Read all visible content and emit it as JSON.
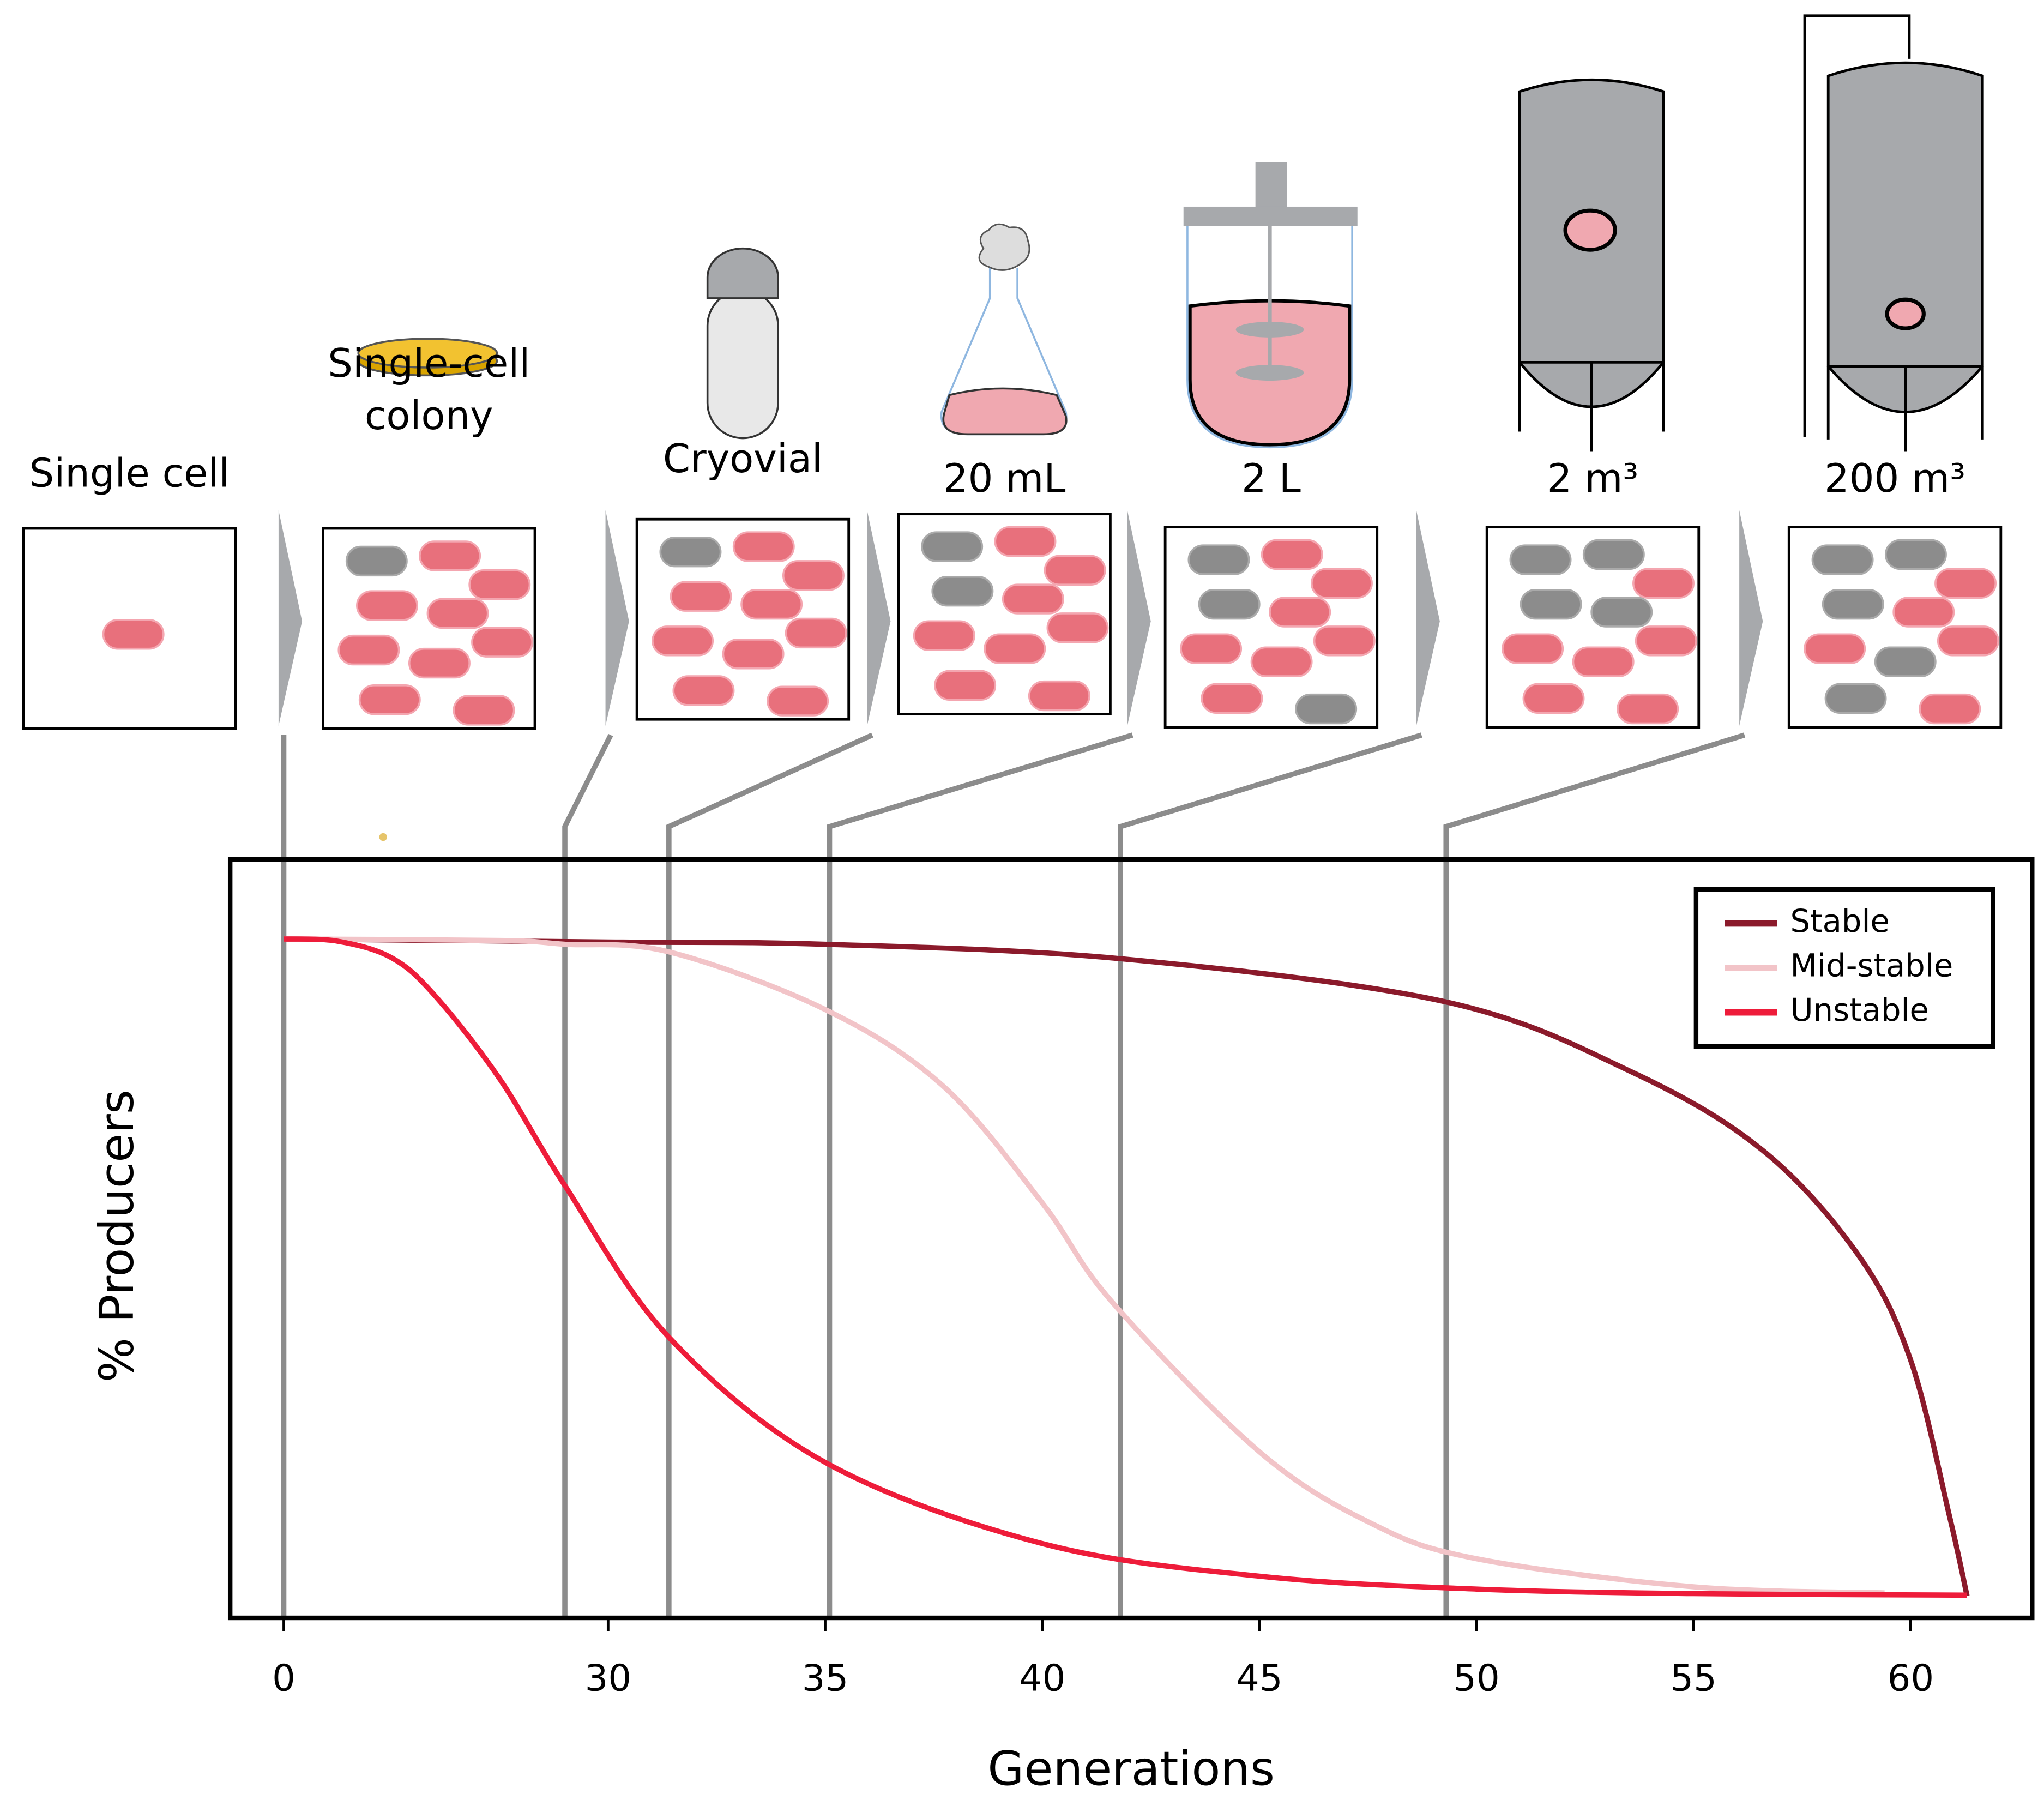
{
  "chart_data": {
    "type": "line",
    "xlabel": "Generations",
    "ylabel": "% Producers",
    "xlim": [
      0,
      62.8
    ],
    "xticks": [
      0,
      30,
      35,
      40,
      45,
      50,
      55,
      60
    ],
    "ylim": [
      0,
      100
    ],
    "legend": "top-right",
    "stages": [
      {
        "label": [
          "Single cell"
        ]
      },
      {
        "label": [
          "Single-cell",
          "colony"
        ]
      },
      {
        "label": [
          "Cryovial"
        ]
      },
      {
        "label": [
          "20 mL"
        ]
      },
      {
        "label": [
          "2 L"
        ]
      },
      {
        "label": [
          "2 m³"
        ]
      },
      {
        "label": [
          "200 m³"
        ]
      }
    ],
    "transitions": [
      0,
      26,
      31.4,
      35.1,
      41.8,
      49.3
    ],
    "series": [
      {
        "name": "Stable",
        "color": "#8b1a2b",
        "x": [
          0,
          30,
          35,
          41.8,
          49.3,
          53.6,
          56.6,
          58.8,
          60,
          60.9,
          61.3
        ],
        "values": [
          89.5,
          89.1,
          88.8,
          86.9,
          81.2,
          71.9,
          61.6,
          47.8,
          34,
          13.3,
          2.9
        ]
      },
      {
        "name": "Mid-stable",
        "color": "#f2c4c8",
        "x": [
          0,
          20,
          26,
          31.4,
          35,
          37.7,
          40,
          41.6,
          45,
          47.6,
          50,
          55,
          59.4
        ],
        "values": [
          89.5,
          89.3,
          88.8,
          87.8,
          80.2,
          70.2,
          54.7,
          41.7,
          21.9,
          12.4,
          7.8,
          4.1,
          3.3
        ]
      },
      {
        "name": "Unstable",
        "color": "#ee1c3a",
        "x": [
          0,
          5,
          10,
          14,
          20,
          26,
          31.4,
          35,
          40,
          45,
          50,
          55,
          61.3
        ],
        "values": [
          89.5,
          89.2,
          87,
          82,
          71,
          57,
          37,
          20.5,
          9.8,
          5.5,
          3.8,
          3.2,
          3.0
        ]
      }
    ]
  }
}
